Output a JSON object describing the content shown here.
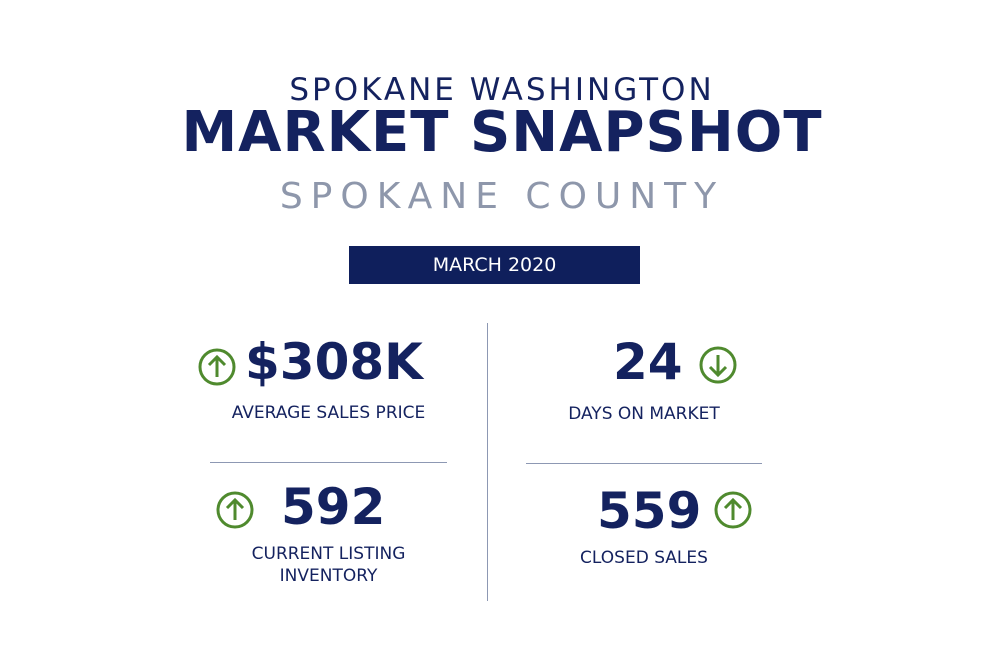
{
  "header": {
    "line1": "SPOKANE WASHINGTON",
    "line2": "MARKET SNAPSHOT",
    "line3": "SPOKANE COUNTY",
    "date_badge": "MARCH 2020"
  },
  "colors": {
    "navy": "#14225f",
    "gray": "#8e97ab",
    "green": "#4f8a2e"
  },
  "stats": [
    {
      "value": "$308K",
      "label": "AVERAGE SALES PRICE",
      "trend": "up",
      "icon": "arrow-up-circle-icon"
    },
    {
      "value": "24",
      "label": "DAYS ON MARKET",
      "trend": "down",
      "icon": "arrow-down-circle-icon"
    },
    {
      "value": "592",
      "label_line1": "CURRENT LISTING",
      "label_line2": "INVENTORY",
      "trend": "up",
      "icon": "arrow-up-circle-icon"
    },
    {
      "value": "559",
      "label": "CLOSED SALES",
      "trend": "up",
      "icon": "arrow-up-circle-icon"
    }
  ]
}
